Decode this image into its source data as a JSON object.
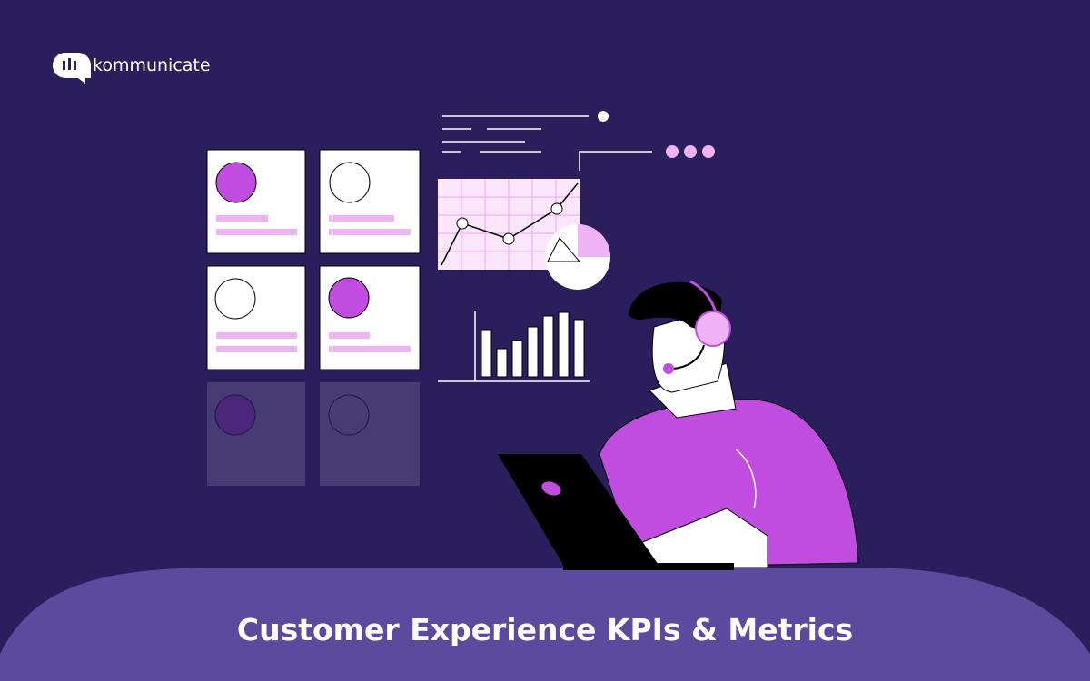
{
  "brand": {
    "name": "kommunicate"
  },
  "title": "Customer Experience KPIs & Metrics"
}
